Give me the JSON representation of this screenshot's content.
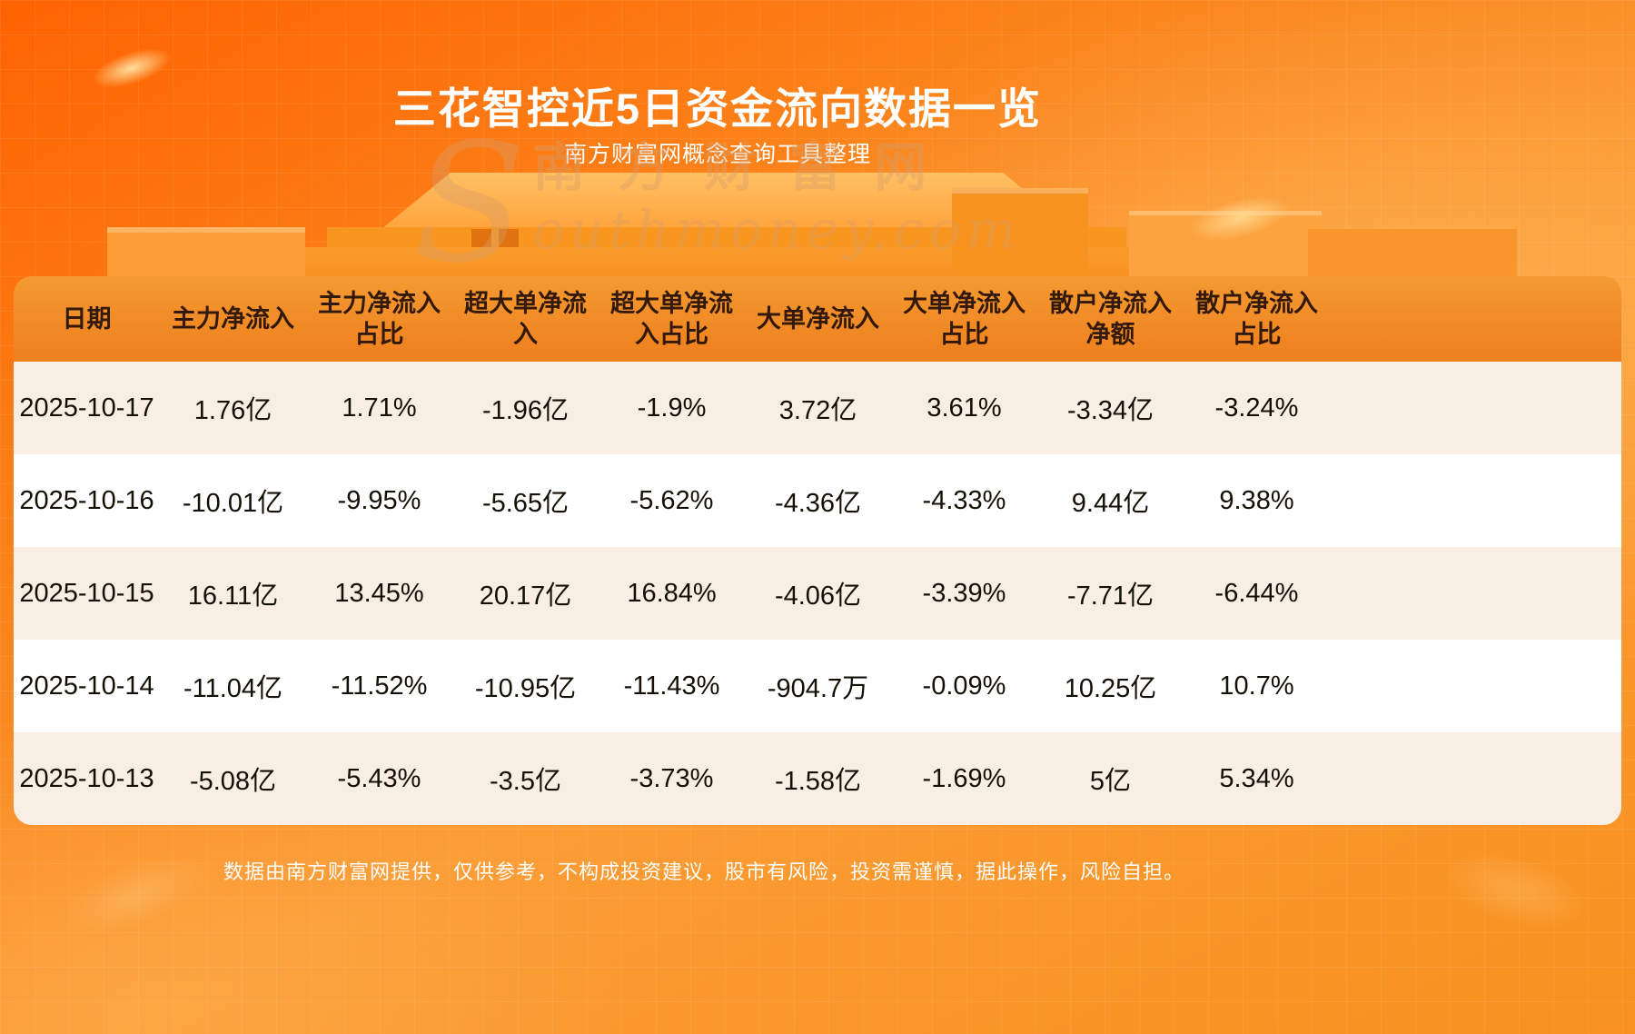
{
  "header": {
    "title": "三花智控近5日资金流向数据一览",
    "subtitle": "南方财富网概念查询工具整理"
  },
  "chart_data": {
    "type": "table",
    "title": "三花智控近5日资金流向数据一览",
    "columns": [
      "日期",
      "主力净流入",
      "主力净流入占比",
      "超大单净流入",
      "超大单净流入占比",
      "大单净流入",
      "大单净流入占比",
      "散户净流入净额",
      "散户净流入占比"
    ],
    "rows": [
      [
        "2025-10-17",
        "1.76亿",
        "1.71%",
        "-1.96亿",
        "-1.9%",
        "3.72亿",
        "3.61%",
        "-3.34亿",
        "-3.24%"
      ],
      [
        "2025-10-16",
        "-10.01亿",
        "-9.95%",
        "-5.65亿",
        "-5.62%",
        "-4.36亿",
        "-4.33%",
        "9.44亿",
        "9.38%"
      ],
      [
        "2025-10-15",
        "16.11亿",
        "13.45%",
        "20.17亿",
        "16.84%",
        "-4.06亿",
        "-3.39%",
        "-7.71亿",
        "-6.44%"
      ],
      [
        "2025-10-14",
        "-11.04亿",
        "-11.52%",
        "-10.95亿",
        "-11.43%",
        "-904.7万",
        "-0.09%",
        "10.25亿",
        "10.7%"
      ],
      [
        "2025-10-13",
        "-5.08亿",
        "-5.43%",
        "-3.5亿",
        "-3.73%",
        "-1.58亿",
        "-1.69%",
        "5亿",
        "5.34%"
      ]
    ]
  },
  "watermark": {
    "initial": "S",
    "cn": "南方财富网",
    "en": "outhmoney.com"
  },
  "footer": {
    "disclaimer": "数据由南方财富网提供，仅供参考，不构成投资建议，股市有风险，投资需谨慎，据此操作，风险自担。"
  },
  "colors": {
    "bg_deep": "#ff6302",
    "bg_light": "#fb9c35",
    "header_bg": "#ef8422",
    "row_cream": "#f9eee4",
    "row_white": "#ffffff",
    "text_dark": "#151005",
    "title_text": "#ffffff"
  }
}
